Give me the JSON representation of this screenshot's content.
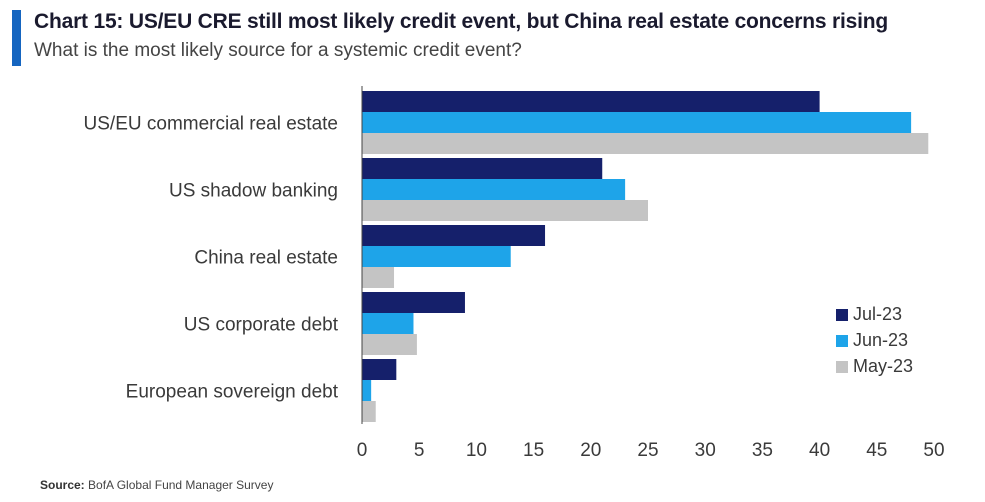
{
  "header": {
    "title": "Chart 15: US/EU CRE still most likely credit event, but China real estate concerns rising",
    "subtitle": "What is the most likely source for a systemic credit event?"
  },
  "footer": {
    "source_label": "Source:",
    "source_text": "BofA Global Fund Manager Survey"
  },
  "colors": {
    "accent": "#1565c0",
    "jul": "#15206b",
    "jun": "#1ea4e9",
    "may": "#c4c4c4"
  },
  "chart_data": {
    "type": "bar",
    "orientation": "horizontal",
    "categories": [
      "US/EU commercial real estate",
      "US shadow banking",
      "China real estate",
      "US corporate debt",
      "European sovereign debt"
    ],
    "series": [
      {
        "name": "Jul-23",
        "color": "#15206b",
        "values": [
          40,
          21,
          16,
          9,
          3
        ]
      },
      {
        "name": "Jun-23",
        "color": "#1ea4e9",
        "values": [
          48,
          23,
          13,
          4.5,
          0.8
        ]
      },
      {
        "name": "May-23",
        "color": "#c4c4c4",
        "values": [
          49.5,
          25,
          2.8,
          4.8,
          1.2
        ]
      }
    ],
    "xlim": [
      0,
      50
    ],
    "xticks": [
      "0",
      "5",
      "10",
      "15",
      "20",
      "25",
      "30",
      "35",
      "40",
      "45",
      "50"
    ],
    "grid": false,
    "legend": "bottom-right"
  }
}
